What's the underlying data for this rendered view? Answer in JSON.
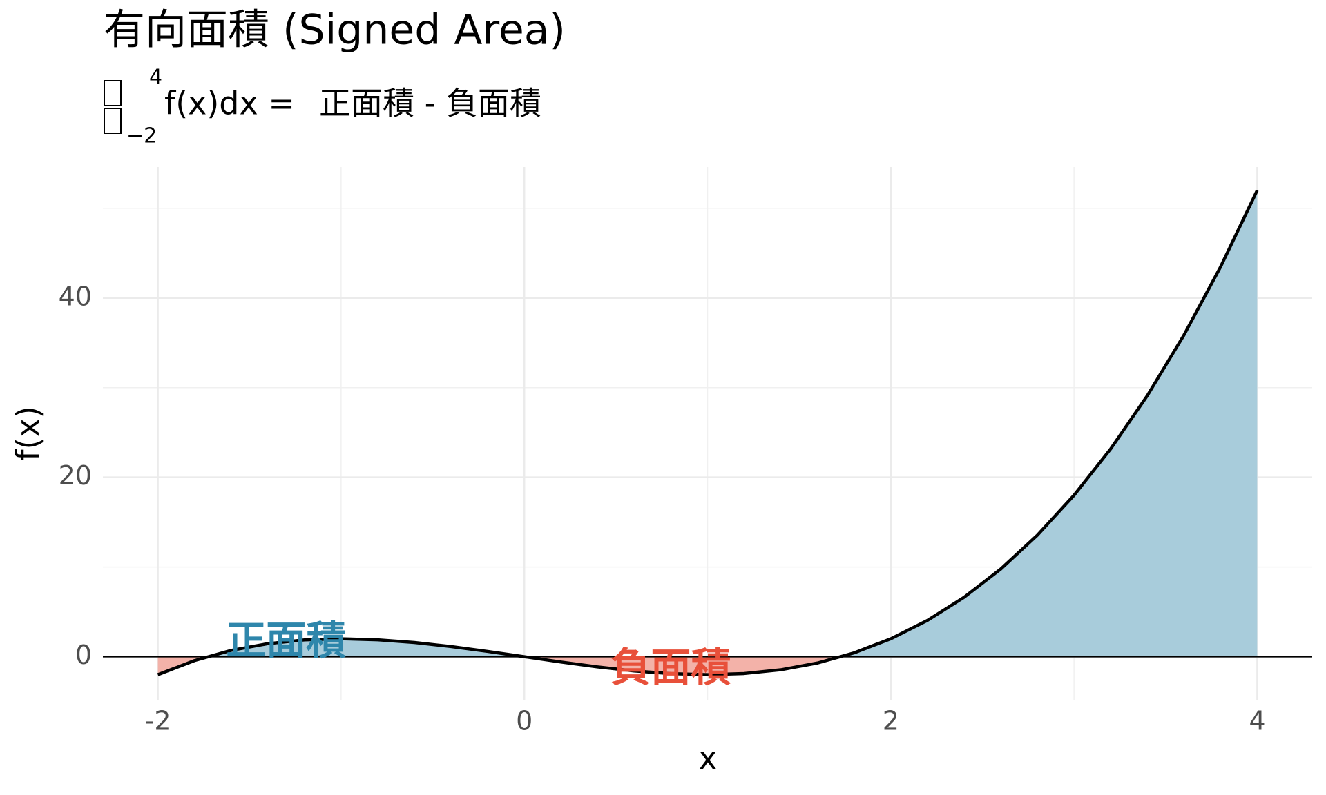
{
  "chart_data": {
    "type": "area",
    "title": "有向面積 (Signed Area)",
    "subtitle": {
      "upper": "4",
      "lower": "−2",
      "integrand": "f(x)dx =",
      "rhs": "正面積 - 負面積"
    },
    "x_label": "x",
    "y_label": "f(x)",
    "x": [
      -2,
      -1.8,
      -1.6,
      -1.4,
      -1.2,
      -1,
      -0.8,
      -0.6,
      -0.4,
      -0.2,
      0,
      0.2,
      0.4,
      0.6,
      0.8,
      1,
      1.2,
      1.4,
      1.6,
      1.8,
      2,
      2.2,
      2.4,
      2.6,
      2.8,
      3,
      3.2,
      3.4,
      3.6,
      3.8,
      4
    ],
    "values": [
      -2,
      -0.432,
      0.704,
      1.456,
      1.872,
      2,
      1.888,
      1.584,
      1.136,
      0.592,
      0,
      -0.592,
      -1.136,
      -1.584,
      -1.888,
      -2,
      -1.872,
      -1.456,
      -0.704,
      0.432,
      2,
      4.048,
      6.624,
      9.776,
      13.552,
      18,
      23.168,
      29.104,
      35.856,
      43.472,
      52
    ],
    "line_color": "#000000",
    "positive_color": "#a8ccdb",
    "negative_color": "#f3b2a9",
    "annotations": [
      {
        "text": "正面積",
        "x": -1.3,
        "y": 1.5,
        "color": "#2e86ab"
      },
      {
        "text": "負面積",
        "x": 0.8,
        "y": -1.5,
        "color": "#e8503a"
      }
    ],
    "xlim": [
      -2.3,
      4.3
    ],
    "ylim": [
      -4.8,
      54.6
    ],
    "xticks": [
      -2,
      0,
      2,
      4
    ],
    "yticks": [
      0,
      20,
      40
    ],
    "x_minor": [
      -1,
      1,
      3
    ],
    "y_minor": [
      10,
      30,
      50
    ],
    "grid": true,
    "zero_line": true
  }
}
